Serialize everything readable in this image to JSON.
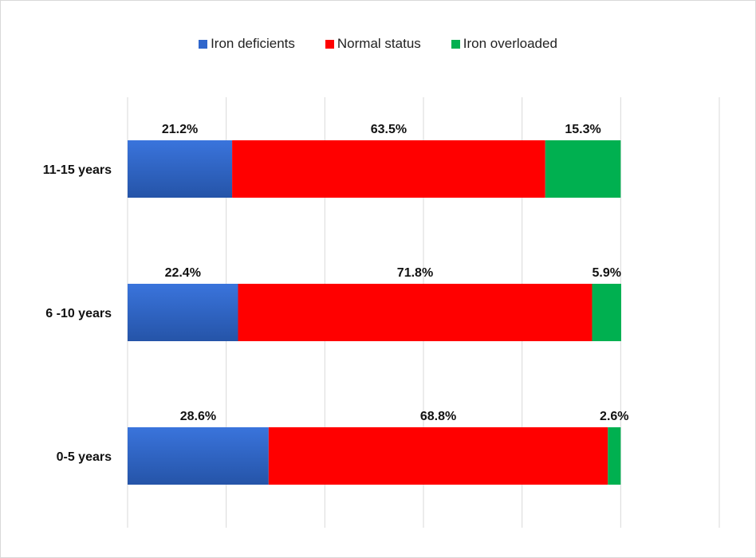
{
  "chart_data": {
    "type": "bar",
    "orientation": "horizontal",
    "stacked": true,
    "categories": [
      "11-15 years",
      "6 -10 years",
      "0-5 years"
    ],
    "series": [
      {
        "name": "Iron deficients",
        "color": "#2f66cc",
        "values": [
          21.2,
          22.4,
          28.6
        ],
        "labels": [
          "21.2%",
          "22.4%",
          "28.6%"
        ]
      },
      {
        "name": "Normal status",
        "color": "#ff0000",
        "values": [
          63.5,
          71.8,
          68.8
        ],
        "labels": [
          "63.5%",
          "71.8%",
          "68.8%"
        ]
      },
      {
        "name": "Iron overloaded",
        "color": "#00b050",
        "values": [
          15.3,
          5.9,
          2.6
        ],
        "labels": [
          "15.3%",
          "5.9%",
          "2.6%"
        ]
      }
    ],
    "xlim": [
      0,
      120
    ],
    "grid": true,
    "legend_position": "top"
  }
}
